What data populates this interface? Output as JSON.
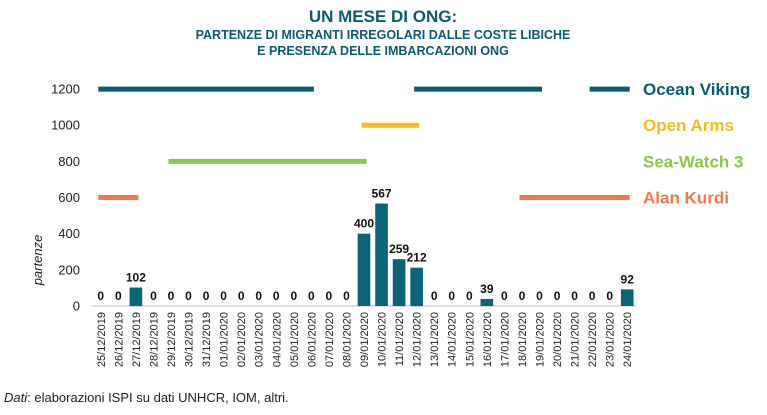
{
  "chart_data": {
    "type": "bar",
    "title": "UN MESE DI ONG:",
    "subtitle": [
      "PARTENZE DI MIGRANTI IRREGOLARI DALLE COSTE LIBICHE",
      "E PRESENZA DELLE IMBARCAZIONI ONG"
    ],
    "y_label": "partenze",
    "source": [
      "Dati",
      ": elaborazioni ISPI su dati UNHCR, IOM, altri."
    ],
    "categories": [
      "25/12/2019",
      "26/12/2019",
      "27/12/2019",
      "28/12/2019",
      "29/12/2019",
      "30/12/2019",
      "31/12/2019",
      "01/01/2020",
      "02/01/2020",
      "03/01/2020",
      "04/01/2020",
      "05/01/2020",
      "06/01/2020",
      "07/01/2020",
      "08/01/2020",
      "09/01/2020",
      "10/01/2020",
      "11/01/2020",
      "12/01/2020",
      "13/01/2020",
      "14/01/2020",
      "15/01/2020",
      "16/01/2020",
      "17/01/2020",
      "18/01/2020",
      "19/01/2020",
      "20/01/2020",
      "21/01/2020",
      "22/01/2020",
      "23/01/2020",
      "24/01/2020"
    ],
    "values": [
      0,
      0,
      102,
      0,
      0,
      0,
      0,
      0,
      0,
      0,
      0,
      0,
      0,
      0,
      0,
      400,
      567,
      259,
      212,
      0,
      0,
      0,
      39,
      0,
      0,
      0,
      0,
      0,
      0,
      0,
      92
    ],
    "color": "#0b6477",
    "lines": [
      {
        "name": "Ocean Viking",
        "color": "#0e5a6e",
        "values": [
          1200,
          1200,
          1200,
          1200,
          1200,
          1200,
          1200,
          1200,
          1200,
          1200,
          1200,
          1200,
          1200,
          null,
          null,
          null,
          null,
          null,
          1200,
          1200,
          1200,
          1200,
          1200,
          1200,
          1200,
          1200,
          null,
          null,
          1200,
          1200,
          1200
        ]
      },
      {
        "name": "Open Arms",
        "color": "#f2bd1d",
        "values": [
          null,
          null,
          null,
          null,
          null,
          null,
          null,
          null,
          null,
          null,
          null,
          null,
          null,
          null,
          null,
          1000,
          1000,
          1000,
          1000,
          null,
          null,
          null,
          null,
          null,
          null,
          null,
          null,
          null,
          null,
          null,
          null
        ]
      },
      {
        "name": "Sea-Watch 3",
        "color": "#8cc64a",
        "values": [
          null,
          null,
          null,
          null,
          800,
          800,
          800,
          800,
          800,
          800,
          800,
          800,
          800,
          800,
          800,
          800,
          null,
          null,
          null,
          null,
          null,
          null,
          null,
          null,
          null,
          null,
          null,
          null,
          null,
          null,
          null
        ]
      },
      {
        "name": "Alan Kurdi",
        "color": "#ef7a52",
        "values": [
          600,
          600,
          600,
          null,
          null,
          null,
          null,
          null,
          null,
          null,
          null,
          null,
          null,
          null,
          null,
          null,
          null,
          null,
          null,
          null,
          null,
          null,
          null,
          null,
          600,
          600,
          600,
          600,
          600,
          600,
          600
        ]
      }
    ],
    "ylim": [
      0,
      1300
    ],
    "yticks": [
      0,
      200,
      400,
      600,
      800,
      1000,
      1200
    ],
    "grid": false
  }
}
